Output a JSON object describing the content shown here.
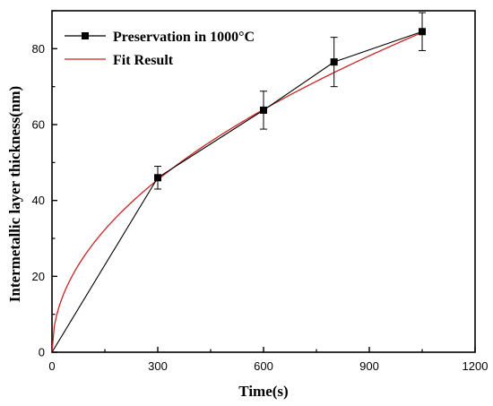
{
  "chart_data": {
    "type": "line",
    "xlabel": "Time(s)",
    "ylabel": "Intermetallic layer thickness(nm)",
    "xlim": [
      0,
      1200
    ],
    "ylim": [
      0,
      90
    ],
    "x_ticks": [
      0,
      300,
      600,
      900,
      1200
    ],
    "y_ticks": [
      0,
      20,
      40,
      60,
      80
    ],
    "grid": false,
    "legend_position": "top-left",
    "series": [
      {
        "name": "Preservation in 1000°C",
        "color": "#000000",
        "marker": "square",
        "x": [
          0,
          300,
          600,
          800,
          1050
        ],
        "y": [
          0,
          46,
          63.8,
          76.5,
          84.5
        ],
        "error": [
          0,
          3,
          5,
          6.5,
          5
        ]
      },
      {
        "name": "Fit Result",
        "color": "#cc2222",
        "model": "power",
        "coefficient": 2.74,
        "exponent": 0.4925
      }
    ]
  }
}
